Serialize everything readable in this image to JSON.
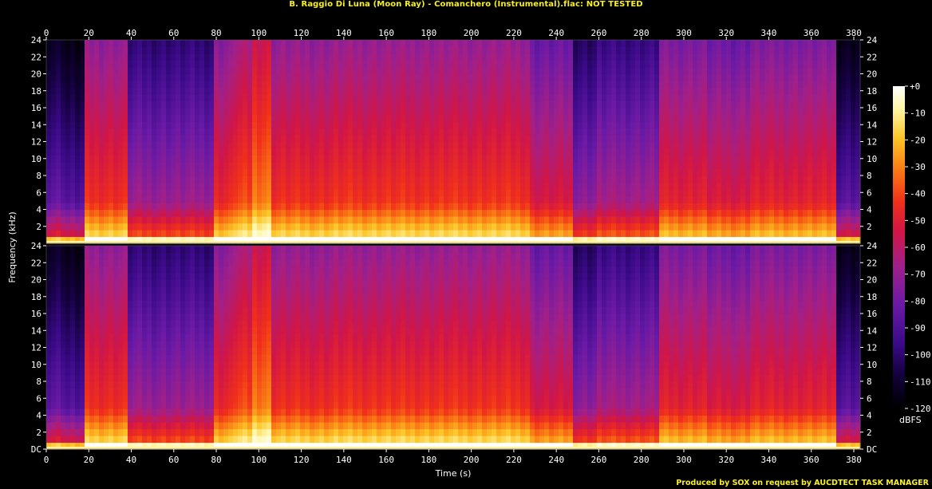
{
  "title": "B. Raggio Di Luna (Moon Ray) - Comanchero (Instrumental).flac: NOT TESTED",
  "footer": "Produced by SOX on request by AUCDTECT TASK MANAGER",
  "colors": {
    "title": "#f7f01e",
    "background": "#000000",
    "palette": [
      "#000000",
      "#12003a",
      "#3a0a88",
      "#6a1aa6",
      "#a0208a",
      "#d11646",
      "#f0301a",
      "#fa7a14",
      "#fcc628",
      "#fff6a8",
      "#ffffff"
    ]
  },
  "chart_data": {
    "type": "heatmap",
    "xlabel": "Time (s)",
    "ylabel": "Frequency (kHz)",
    "colorbar_label": "dBFS",
    "xlim": [
      0,
      383
    ],
    "ylim": [
      0,
      24
    ],
    "x_ticks": [
      "0",
      "20",
      "40",
      "60",
      "80",
      "100",
      "120",
      "140",
      "160",
      "180",
      "200",
      "220",
      "240",
      "260",
      "280",
      "300",
      "320",
      "340",
      "360",
      "380"
    ],
    "y_ticks_top_channel": [
      "2",
      "4",
      "6",
      "8",
      "10",
      "12",
      "14",
      "16",
      "18",
      "20",
      "22",
      "24"
    ],
    "y_ticks_bottom_channel": [
      "DC",
      "2",
      "4",
      "6",
      "8",
      "10",
      "12",
      "14",
      "16",
      "18",
      "20",
      "22",
      "24"
    ],
    "colorbar_ticks": [
      "+0",
      "-10",
      "-20",
      "-30",
      "-40",
      "-50",
      "-60",
      "-70",
      "-80",
      "-90",
      "-100",
      "-110",
      "-120"
    ],
    "colorbar_range": [
      -120,
      0
    ],
    "channels": 2,
    "segments": [
      {
        "t0": 0,
        "t1": 8,
        "level": 0.32
      },
      {
        "t0": 8,
        "t1": 10,
        "level": 0.12
      },
      {
        "t0": 10,
        "t1": 17,
        "level": 0.28
      },
      {
        "t0": 17,
        "t1": 38,
        "level": 0.62
      },
      {
        "t0": 38,
        "t1": 78,
        "level": 0.42
      },
      {
        "t0": 78,
        "t1": 88,
        "level": 0.6
      },
      {
        "t0": 88,
        "t1": 98,
        "level": 0.66
      },
      {
        "t0": 98,
        "t1": 105,
        "level": 0.74
      },
      {
        "t0": 105,
        "t1": 135,
        "level": 0.62
      },
      {
        "t0": 135,
        "t1": 228,
        "level": 0.63
      },
      {
        "t0": 228,
        "t1": 248,
        "level": 0.54
      },
      {
        "t0": 248,
        "t1": 258,
        "level": 0.4
      },
      {
        "t0": 258,
        "t1": 288,
        "level": 0.44
      },
      {
        "t0": 288,
        "t1": 310,
        "level": 0.58
      },
      {
        "t0": 310,
        "t1": 332,
        "level": 0.55
      },
      {
        "t0": 332,
        "t1": 372,
        "level": 0.58
      },
      {
        "t0": 372,
        "t1": 383,
        "level": 0.3
      }
    ]
  }
}
